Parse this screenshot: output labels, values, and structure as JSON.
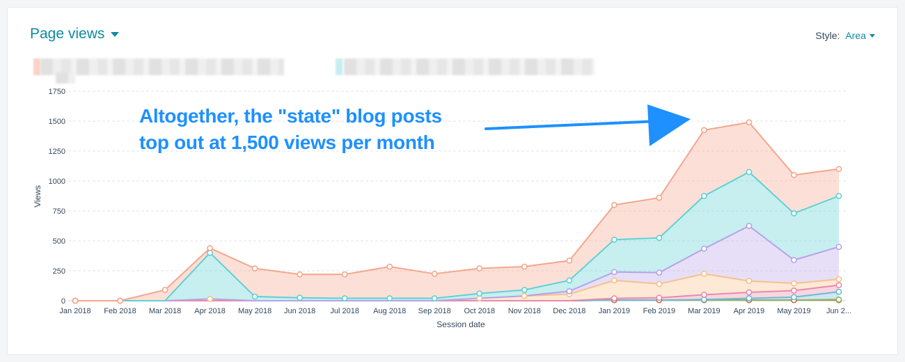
{
  "header": {
    "title": "Page views",
    "style_label": "Style:",
    "style_value": "Area"
  },
  "annotation": {
    "line1": "Altogether, the \"state\" blog posts",
    "line2": "top out at 1,500 views per month"
  },
  "chart_data": {
    "type": "area",
    "stacked": true,
    "categories": [
      "Jan 2018",
      "Feb 2018",
      "Mar 2018",
      "Apr 2018",
      "May 2018",
      "Jun 2018",
      "Jul 2018",
      "Aug 2018",
      "Sep 2018",
      "Oct 2018",
      "Nov 2018",
      "Dec 2018",
      "Jan 2019",
      "Feb 2019",
      "Mar 2019",
      "Apr 2019",
      "May 2019",
      "Jun 2..."
    ],
    "xlabel": "Session date",
    "ylabel": "Views",
    "ylim": [
      0,
      1750
    ],
    "yticks": [
      0,
      250,
      500,
      750,
      1000,
      1250,
      1500,
      1750
    ],
    "grid": true,
    "series": [
      {
        "color": "#b5714f",
        "values": [
          0,
          0,
          0,
          0,
          0,
          0,
          0,
          0,
          0,
          0,
          0,
          0,
          5,
          5,
          5,
          5,
          5,
          5
        ]
      },
      {
        "color": "#8fb55a",
        "values": [
          0,
          0,
          0,
          0,
          0,
          0,
          0,
          0,
          0,
          0,
          0,
          0,
          0,
          0,
          0,
          0,
          0,
          5
        ]
      },
      {
        "color": "#6fb8d8",
        "values": [
          0,
          0,
          0,
          0,
          0,
          0,
          0,
          0,
          0,
          0,
          0,
          0,
          0,
          0,
          5,
          15,
          25,
          65
        ]
      },
      {
        "color": "#e98aa8",
        "values": [
          0,
          0,
          0,
          0,
          0,
          0,
          0,
          0,
          0,
          0,
          0,
          0,
          15,
          20,
          40,
          50,
          55,
          55
        ]
      },
      {
        "color": "#f8c08a",
        "values": [
          0,
          0,
          0,
          15,
          0,
          0,
          0,
          0,
          0,
          20,
          40,
          55,
          150,
          115,
          175,
          95,
          60,
          50
        ]
      },
      {
        "color": "#b6a2e8",
        "values": [
          0,
          0,
          0,
          0,
          0,
          0,
          0,
          0,
          0,
          0,
          0,
          25,
          70,
          95,
          210,
          460,
          195,
          270
        ]
      },
      {
        "color": "#5fd0d4",
        "values": [
          0,
          0,
          0,
          385,
          35,
          25,
          20,
          20,
          20,
          40,
          50,
          90,
          270,
          290,
          440,
          450,
          390,
          425
        ]
      },
      {
        "color": "#f5a68c",
        "values": [
          0,
          0,
          90,
          40,
          235,
          195,
          200,
          265,
          205,
          210,
          195,
          165,
          290,
          335,
          550,
          415,
          320,
          225
        ]
      }
    ]
  }
}
